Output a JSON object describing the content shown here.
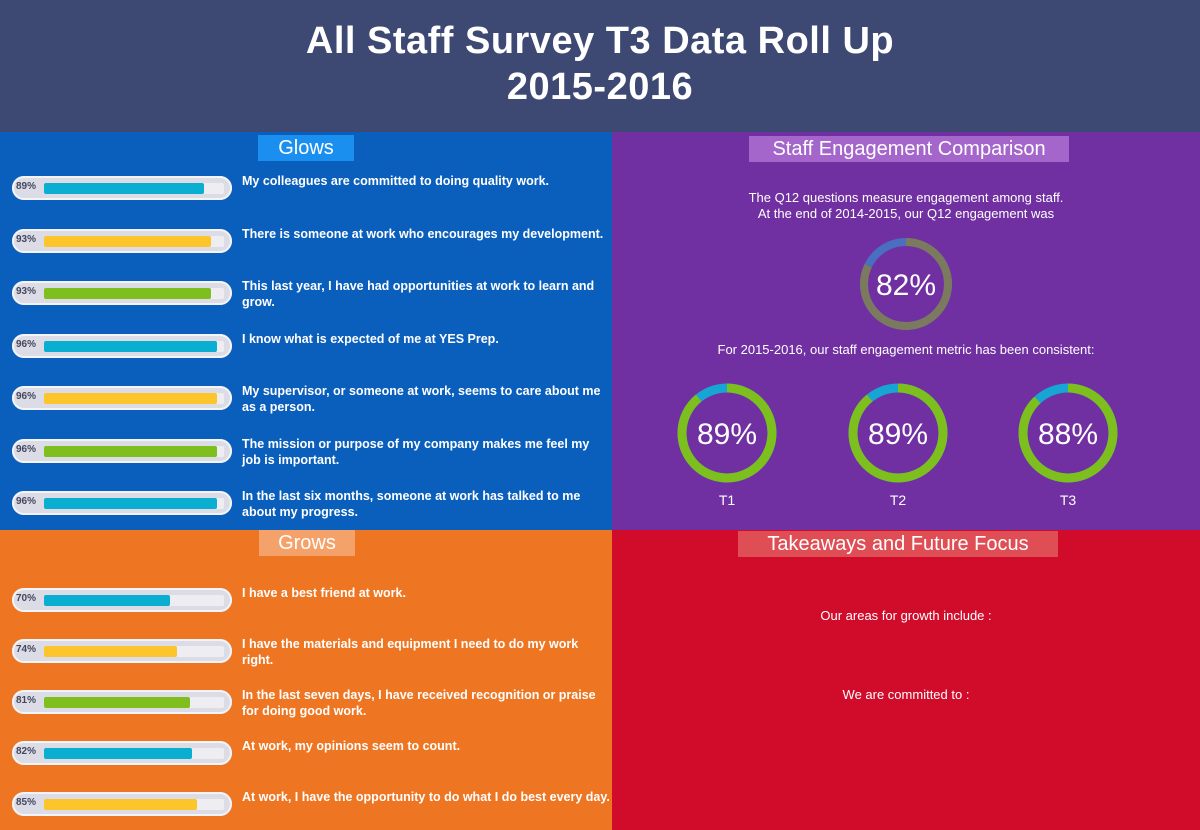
{
  "header": {
    "title_line1": "All Staff Survey T3 Data Roll Up",
    "title_line2": "2015-2016"
  },
  "glows": {
    "title": "Glows",
    "items": [
      {
        "pct": "89%",
        "value": 89,
        "color": "#0aaed0",
        "label": "My colleagues are committed to doing quality work."
      },
      {
        "pct": "93%",
        "value": 93,
        "color": "#fcc52c",
        "label": "There is someone at work who encourages my development."
      },
      {
        "pct": "93%",
        "value": 93,
        "color": "#7ebf1d",
        "label": "This last year, I have had opportunities at work to learn and grow."
      },
      {
        "pct": "96%",
        "value": 96,
        "color": "#0aaed0",
        "label": "I know what is expected of me at YES Prep."
      },
      {
        "pct": "96%",
        "value": 96,
        "color": "#fcc52c",
        "label": "My supervisor, or someone at work, seems to care about me as a person."
      },
      {
        "pct": "96%",
        "value": 96,
        "color": "#7ebf1d",
        "label": "The mission or purpose of my company makes me feel my job is important."
      },
      {
        "pct": "96%",
        "value": 96,
        "color": "#0aaed0",
        "label": "In the last six months, someone at work has talked to me about my progress."
      }
    ]
  },
  "grows": {
    "title": "Grows",
    "items": [
      {
        "pct": "70%",
        "value": 70,
        "color": "#0aaed0",
        "label": "I have a best friend at work."
      },
      {
        "pct": "74%",
        "value": 74,
        "color": "#fcc52c",
        "label": "I have the materials and equipment I need to do my work right."
      },
      {
        "pct": "81%",
        "value": 81,
        "color": "#7ebf1d",
        "label": "In the last seven days, I have received recognition or praise for doing good work."
      },
      {
        "pct": "82%",
        "value": 82,
        "color": "#0aaed0",
        "label": "At work, my opinions seem to count."
      },
      {
        "pct": "85%",
        "value": 85,
        "color": "#fcc52c",
        "label": "At work, I have the opportunity to do what I do best every day."
      }
    ]
  },
  "engagement": {
    "title": "Staff Engagement Comparison",
    "intro_line1": "The Q12 questions measure engagement among staff.",
    "intro_line2": "At the end of 2014-2015, our Q12 engagement was",
    "consistent_text": "For 2015-2016, our staff engagement metric has been consistent:",
    "baseline": {
      "label": "82%",
      "value": 82,
      "track_color": "#4a6ec0",
      "fill_color": "#7b7a5e"
    },
    "terms": [
      {
        "value_label": "89%",
        "value": 89,
        "term": "T1"
      },
      {
        "value_label": "89%",
        "value": 89,
        "term": "T2"
      },
      {
        "value_label": "88%",
        "value": 88,
        "term": "T3"
      }
    ],
    "term_fill_color": "#7dbf1d",
    "term_track_color": "#17a6d4"
  },
  "takeaways": {
    "title": "Takeaways and Future Focus",
    "growth_text": "Our areas for growth include :",
    "commit_text": "We are committed to :"
  },
  "chart_data": [
    {
      "type": "bar",
      "title": "Glows",
      "categories": [
        "My colleagues are committed to doing quality work.",
        "There is someone at work who encourages my development.",
        "This last year, I have had opportunities at work to learn and grow.",
        "I know what is expected of me at YES Prep.",
        "My supervisor, or someone at work, seems to care about me as a person.",
        "The mission or purpose of my company makes me feel my job is important.",
        "In the last six months, someone at work has talked to me about my progress."
      ],
      "values": [
        89,
        93,
        93,
        96,
        96,
        96,
        96
      ],
      "ylim": [
        0,
        100
      ]
    },
    {
      "type": "bar",
      "title": "Grows",
      "categories": [
        "I have a best friend at work.",
        "I have the materials and equipment I need to do my work right.",
        "In the last seven days, I have received recognition or praise for doing good work.",
        "At work, my opinions seem to count.",
        "At work, I have the opportunity to do what I do best every day."
      ],
      "values": [
        70,
        74,
        81,
        82,
        85
      ],
      "ylim": [
        0,
        100
      ]
    },
    {
      "type": "pie",
      "title": "Staff Engagement Comparison",
      "categories": [
        "2014-2015",
        "T1",
        "T2",
        "T3"
      ],
      "values": [
        82,
        89,
        89,
        88
      ]
    }
  ]
}
